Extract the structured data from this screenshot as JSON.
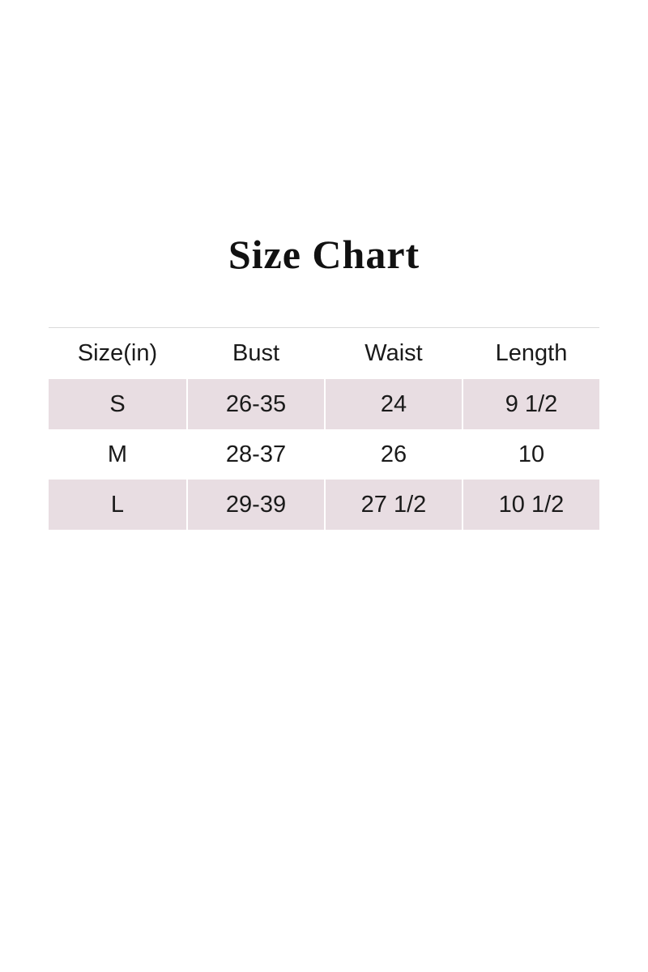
{
  "title": "Size Chart",
  "chart_data": {
    "type": "table",
    "title": "Size Chart",
    "columns": [
      "Size(in)",
      "Bust",
      "Waist",
      "Length"
    ],
    "rows": [
      [
        "S",
        "26-35",
        "24",
        "9 1/2"
      ],
      [
        "M",
        "28-37",
        "26",
        "10"
      ],
      [
        "L",
        "29-39",
        "27 1/2",
        "10 1/2"
      ]
    ]
  },
  "colors": {
    "background": "#ffffff",
    "stripe_row": "#e8dde2",
    "cell_separator": "#ffffff",
    "header_rule": "#d9d9d9",
    "text": "#1a1a1a"
  }
}
